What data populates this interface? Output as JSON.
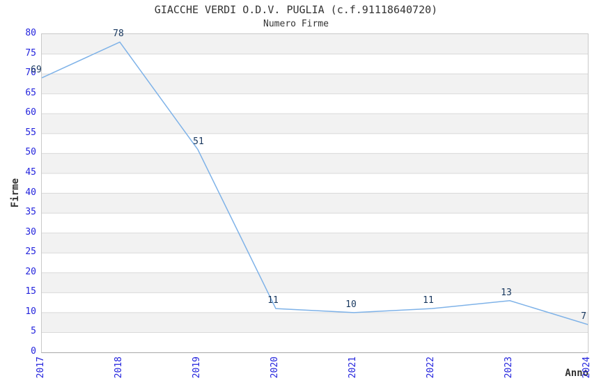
{
  "chart_data": {
    "type": "line",
    "title": "GIACCHE VERDI O.D.V. PUGLIA (c.f.91118640720)",
    "subtitle": "Numero Firme",
    "xlabel": "Anno",
    "ylabel": "Firme",
    "categories": [
      "2017",
      "2018",
      "2019",
      "2020",
      "2021",
      "2022",
      "2023",
      "2024"
    ],
    "values": [
      69,
      78,
      51,
      11,
      10,
      11,
      13,
      7
    ],
    "ylim": [
      0,
      80
    ],
    "ytick_step": 5,
    "grid": "horizontal-gridlines-with-alternating-bands",
    "legend": "none",
    "label_dx": [
      -7,
      -1,
      2,
      -3,
      -3,
      -4,
      -4,
      -5
    ],
    "colors": {
      "line": "#7eb2e8",
      "tick_label": "#2323dd",
      "data_label": "#17375e",
      "band": "#f2f2f2",
      "gridline": "#d9d9d9",
      "text": "#333333",
      "background": "#ffffff"
    }
  }
}
